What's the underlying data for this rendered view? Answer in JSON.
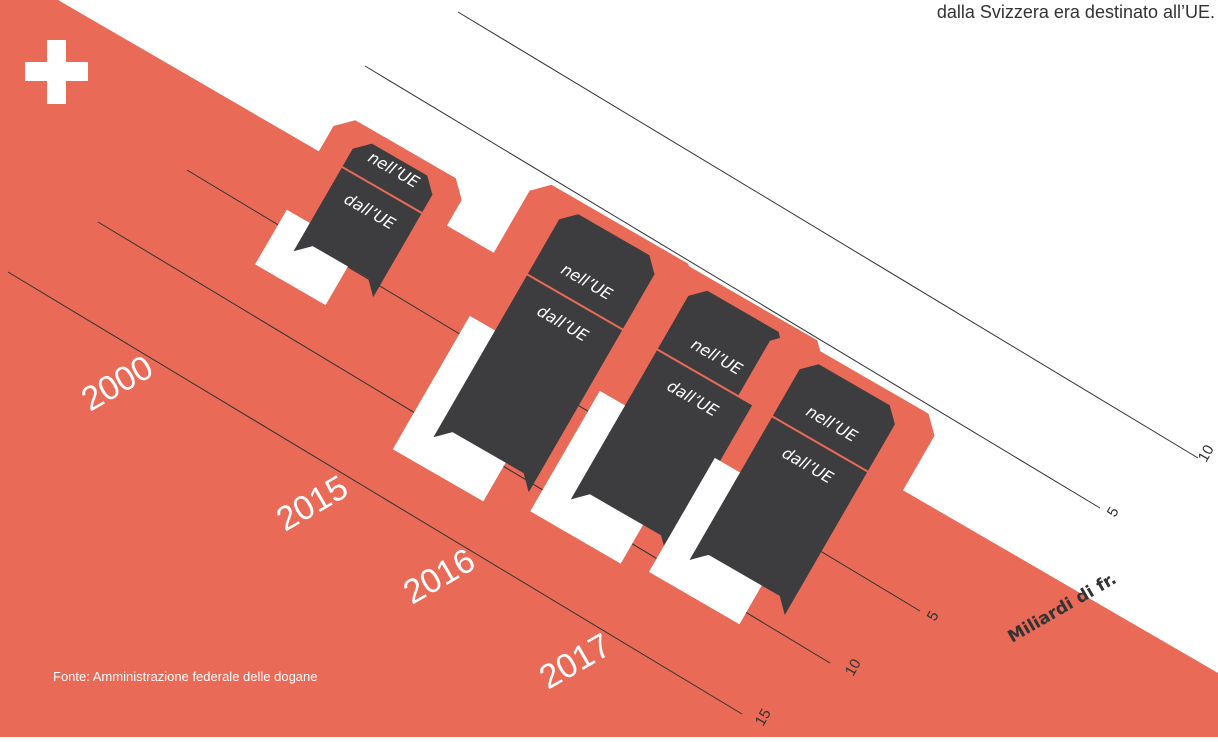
{
  "colors": {
    "background": "#ffffff",
    "accent": "#E96A57",
    "dark": "#3D3D3F",
    "white": "#ffffff",
    "line": "#333333"
  },
  "headline_fragment": "dalla Svizzera era destinato all’UE.",
  "source": "Fonte: Amministrazione federale delle dogane",
  "icons": {
    "flag": "swiss-cross-icon"
  },
  "chart_data": {
    "type": "bar",
    "orientation": "isometric-horizontal",
    "categories": [
      "2000",
      "2015",
      "2016",
      "2017"
    ],
    "unit": "Miliardi di fr.",
    "tick_labels_exports_side": [
      "5",
      "10"
    ],
    "tick_labels_imports_side": [
      "5",
      "10",
      "15"
    ],
    "series": [
      {
        "name": "nell’UE",
        "values": [
          1.9,
          4.2,
          4.1,
          3.7
        ]
      },
      {
        "name": "dall’UE",
        "values": [
          4.5,
          9.4,
          8.6,
          8.2
        ]
      }
    ],
    "grid": true,
    "legend": "labels-on-bars"
  }
}
